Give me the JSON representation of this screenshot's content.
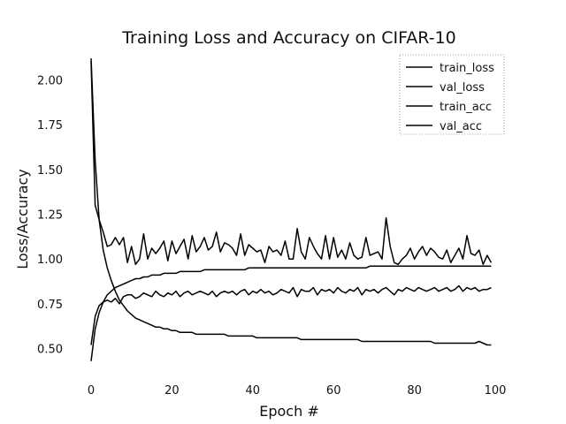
{
  "chart_data": {
    "type": "line",
    "title": "Training Loss and Accuracy on CIFAR-10",
    "xlabel": "Epoch #",
    "ylabel": "Loss/Accuracy",
    "xlim": [
      0,
      100
    ],
    "ylim": [
      0.35,
      2.15
    ],
    "xticks": [
      0,
      20,
      40,
      60,
      80,
      100
    ],
    "yticks": [
      0.5,
      0.75,
      1.0,
      1.25,
      1.5,
      1.75,
      2.0
    ],
    "yticklabels": [
      "0.50",
      "0.75",
      "1.00",
      "1.25",
      "1.50",
      "1.75",
      "2.00"
    ],
    "grid": false,
    "legend_position": "top-right",
    "line_color": "#000000",
    "x": [
      0,
      1,
      2,
      3,
      4,
      5,
      6,
      7,
      8,
      9,
      10,
      11,
      12,
      13,
      14,
      15,
      16,
      17,
      18,
      19,
      20,
      21,
      22,
      23,
      24,
      25,
      26,
      27,
      28,
      29,
      30,
      31,
      32,
      33,
      34,
      35,
      36,
      37,
      38,
      39,
      40,
      41,
      42,
      43,
      44,
      45,
      46,
      47,
      48,
      49,
      50,
      51,
      52,
      53,
      54,
      55,
      56,
      57,
      58,
      59,
      60,
      61,
      62,
      63,
      64,
      65,
      66,
      67,
      68,
      69,
      70,
      71,
      72,
      73,
      74,
      75,
      76,
      77,
      78,
      79,
      80,
      81,
      82,
      83,
      84,
      85,
      86,
      87,
      88,
      89,
      90,
      91,
      92,
      93,
      94,
      95,
      96,
      97,
      98,
      99
    ],
    "series": [
      {
        "name": "train_loss",
        "values": [
          2.12,
          1.55,
          1.22,
          1.05,
          0.95,
          0.88,
          0.82,
          0.77,
          0.74,
          0.71,
          0.69,
          0.67,
          0.66,
          0.65,
          0.64,
          0.63,
          0.62,
          0.62,
          0.61,
          0.61,
          0.6,
          0.6,
          0.59,
          0.59,
          0.59,
          0.59,
          0.58,
          0.58,
          0.58,
          0.58,
          0.58,
          0.58,
          0.58,
          0.58,
          0.57,
          0.57,
          0.57,
          0.57,
          0.57,
          0.57,
          0.57,
          0.56,
          0.56,
          0.56,
          0.56,
          0.56,
          0.56,
          0.56,
          0.56,
          0.56,
          0.56,
          0.56,
          0.55,
          0.55,
          0.55,
          0.55,
          0.55,
          0.55,
          0.55,
          0.55,
          0.55,
          0.55,
          0.55,
          0.55,
          0.55,
          0.55,
          0.55,
          0.54,
          0.54,
          0.54,
          0.54,
          0.54,
          0.54,
          0.54,
          0.54,
          0.54,
          0.54,
          0.54,
          0.54,
          0.54,
          0.54,
          0.54,
          0.54,
          0.54,
          0.54,
          0.53,
          0.53,
          0.53,
          0.53,
          0.53,
          0.53,
          0.53,
          0.53,
          0.53,
          0.53,
          0.53,
          0.54,
          0.53,
          0.52,
          0.52
        ]
      },
      {
        "name": "val_loss",
        "values": [
          2.1,
          1.3,
          1.22,
          1.15,
          1.07,
          1.08,
          1.12,
          1.08,
          1.12,
          0.98,
          1.07,
          0.97,
          1.0,
          1.14,
          1.0,
          1.06,
          1.03,
          1.06,
          1.1,
          0.99,
          1.1,
          1.03,
          1.07,
          1.11,
          1.0,
          1.13,
          1.04,
          1.07,
          1.12,
          1.05,
          1.07,
          1.15,
          1.04,
          1.09,
          1.08,
          1.06,
          1.02,
          1.14,
          1.02,
          1.08,
          1.06,
          1.04,
          1.05,
          0.98,
          1.07,
          1.04,
          1.05,
          1.02,
          1.1,
          1.0,
          1.0,
          1.17,
          1.04,
          1.0,
          1.12,
          1.07,
          1.03,
          1.0,
          1.13,
          1.0,
          1.12,
          1.01,
          1.05,
          1.0,
          1.09,
          1.02,
          1.0,
          1.01,
          1.12,
          1.02,
          1.03,
          1.04,
          1.0,
          1.23,
          1.07,
          0.98,
          0.97,
          1.0,
          1.02,
          1.06,
          1.0,
          1.04,
          1.07,
          1.02,
          1.06,
          1.04,
          1.01,
          1.0,
          1.05,
          0.98,
          1.02,
          1.06,
          1.0,
          1.13,
          1.03,
          1.02,
          1.05,
          0.97,
          1.02,
          0.98
        ]
      },
      {
        "name": "train_acc",
        "values": [
          0.43,
          0.61,
          0.7,
          0.76,
          0.8,
          0.82,
          0.84,
          0.85,
          0.86,
          0.87,
          0.88,
          0.89,
          0.89,
          0.9,
          0.9,
          0.91,
          0.91,
          0.91,
          0.92,
          0.92,
          0.92,
          0.92,
          0.93,
          0.93,
          0.93,
          0.93,
          0.93,
          0.93,
          0.94,
          0.94,
          0.94,
          0.94,
          0.94,
          0.94,
          0.94,
          0.94,
          0.94,
          0.94,
          0.94,
          0.95,
          0.95,
          0.95,
          0.95,
          0.95,
          0.95,
          0.95,
          0.95,
          0.95,
          0.95,
          0.95,
          0.95,
          0.95,
          0.95,
          0.95,
          0.95,
          0.95,
          0.95,
          0.95,
          0.95,
          0.95,
          0.95,
          0.95,
          0.95,
          0.95,
          0.95,
          0.95,
          0.95,
          0.95,
          0.95,
          0.96,
          0.96,
          0.96,
          0.96,
          0.96,
          0.96,
          0.96,
          0.96,
          0.96,
          0.96,
          0.96,
          0.96,
          0.96,
          0.96,
          0.96,
          0.96,
          0.96,
          0.96,
          0.96,
          0.96,
          0.96,
          0.96,
          0.96,
          0.96,
          0.96,
          0.96,
          0.96,
          0.96,
          0.96,
          0.96,
          0.96
        ]
      },
      {
        "name": "val_acc",
        "values": [
          0.52,
          0.68,
          0.74,
          0.76,
          0.77,
          0.76,
          0.78,
          0.75,
          0.79,
          0.8,
          0.8,
          0.78,
          0.79,
          0.81,
          0.8,
          0.79,
          0.82,
          0.8,
          0.79,
          0.81,
          0.8,
          0.82,
          0.79,
          0.81,
          0.82,
          0.8,
          0.81,
          0.82,
          0.81,
          0.8,
          0.82,
          0.79,
          0.81,
          0.82,
          0.81,
          0.82,
          0.8,
          0.82,
          0.83,
          0.8,
          0.82,
          0.81,
          0.83,
          0.81,
          0.82,
          0.8,
          0.81,
          0.83,
          0.82,
          0.81,
          0.84,
          0.79,
          0.83,
          0.82,
          0.82,
          0.84,
          0.8,
          0.83,
          0.82,
          0.83,
          0.81,
          0.84,
          0.82,
          0.81,
          0.83,
          0.82,
          0.84,
          0.8,
          0.83,
          0.82,
          0.83,
          0.81,
          0.83,
          0.84,
          0.82,
          0.8,
          0.83,
          0.82,
          0.84,
          0.83,
          0.82,
          0.84,
          0.83,
          0.82,
          0.83,
          0.84,
          0.82,
          0.83,
          0.84,
          0.82,
          0.83,
          0.85,
          0.82,
          0.84,
          0.83,
          0.84,
          0.82,
          0.83,
          0.83,
          0.84
        ]
      }
    ]
  }
}
